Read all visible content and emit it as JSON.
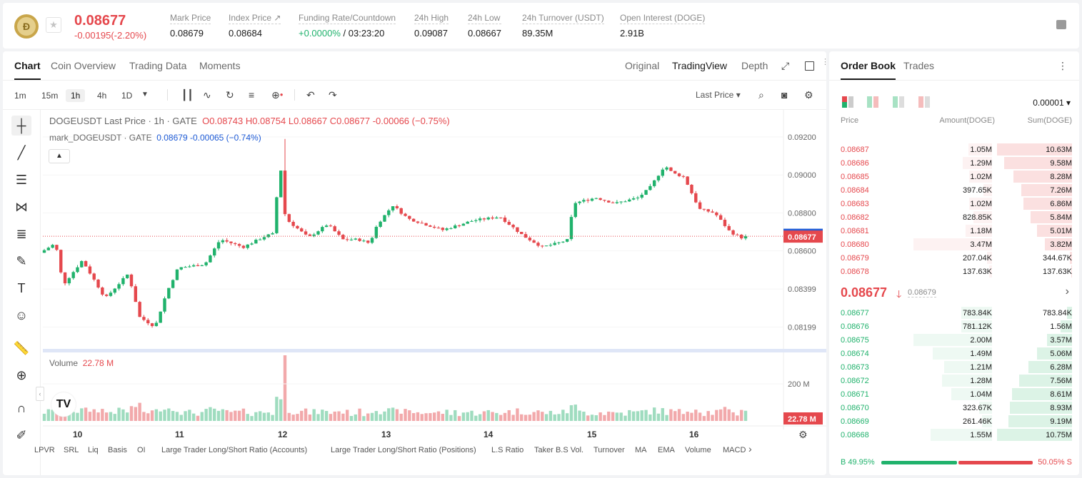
{
  "header": {
    "price": "0.08677",
    "change": "-0.00195(-2.20%)",
    "stats": [
      {
        "label": "Mark Price",
        "value": "0.08679"
      },
      {
        "label": "Index Price ↗",
        "value": "0.08684"
      },
      {
        "label": "Funding Rate/Countdown",
        "value_green": "+0.0000%",
        "value": " / 03:23:20"
      },
      {
        "label": "24h High",
        "value": "0.09087"
      },
      {
        "label": "24h Low",
        "value": "0.08667"
      },
      {
        "label": "24h Turnover (USDT)",
        "value": "89.35M"
      },
      {
        "label": "Open Interest (DOGE)",
        "value": "2.91B"
      }
    ]
  },
  "chart_tabs": [
    "Chart",
    "Coin Overview",
    "Trading Data",
    "Moments"
  ],
  "view_tabs": [
    "Original",
    "TradingView",
    "Depth"
  ],
  "timeframes": [
    "1m",
    "15m",
    "1h",
    "4h",
    "1D"
  ],
  "price_source": "Last Price",
  "legend": {
    "symbol": "DOGEUSDT Last Price · 1h · GATE",
    "o": "O0.08743",
    "h": "H0.08754",
    "l": "L0.08667",
    "c": "C0.08677",
    "chg": "-0.00066 (−0.75%)",
    "mark_label": "mark_DOGEUSDT · GATE",
    "mark_vals": "0.08679  -0.00065 (−0.74%)"
  },
  "volume_legend": {
    "label": "Volume",
    "value": "22.78 M"
  },
  "price_axis": [
    "0.09200",
    "0.09000",
    "0.08800",
    "0.08600",
    "0.08399",
    "0.08199"
  ],
  "price_tags": {
    "mark": "0.08679",
    "last": "0.08677"
  },
  "volume_axis": {
    "label": "200 M",
    "tag": "22.78 M"
  },
  "time_axis": [
    "10",
    "11",
    "12",
    "13",
    "14",
    "15",
    "16"
  ],
  "indicators": [
    "LPVR",
    "SRL",
    "Liq",
    "Basis",
    "OI",
    "Large Trader Long/Short Ratio (Accounts)",
    "Large Trader Long/Short Ratio (Positions)",
    "L.S Ratio",
    "Taker B.S Vol.",
    "Turnover",
    "MA",
    "EMA",
    "Volume",
    "MACD"
  ],
  "colors": {
    "up": "#20b26c",
    "down": "#e5484d",
    "mark": "#1e5bd6"
  },
  "order_book": {
    "tabs": [
      "Order Book",
      "Trades"
    ],
    "precision": "0.00001",
    "columns": [
      "Price",
      "Amount(DOGE)",
      "Sum(DOGE)"
    ],
    "asks": [
      {
        "price": "0.08687",
        "amount": "1.05M",
        "sum": "10.63M",
        "amt_pct": 0.3,
        "sum_pct": 1.0
      },
      {
        "price": "0.08686",
        "amount": "1.29M",
        "sum": "9.58M",
        "amt_pct": 0.37,
        "sum_pct": 0.9
      },
      {
        "price": "0.08685",
        "amount": "1.02M",
        "sum": "8.28M",
        "amt_pct": 0.29,
        "sum_pct": 0.78
      },
      {
        "price": "0.08684",
        "amount": "397.65K",
        "sum": "7.26M",
        "amt_pct": 0.11,
        "sum_pct": 0.68
      },
      {
        "price": "0.08683",
        "amount": "1.02M",
        "sum": "6.86M",
        "amt_pct": 0.29,
        "sum_pct": 0.65
      },
      {
        "price": "0.08682",
        "amount": "828.85K",
        "sum": "5.84M",
        "amt_pct": 0.24,
        "sum_pct": 0.55
      },
      {
        "price": "0.08681",
        "amount": "1.18M",
        "sum": "5.01M",
        "amt_pct": 0.34,
        "sum_pct": 0.47
      },
      {
        "price": "0.08680",
        "amount": "3.47M",
        "sum": "3.82M",
        "amt_pct": 1.0,
        "sum_pct": 0.36
      },
      {
        "price": "0.08679",
        "amount": "207.04K",
        "sum": "344.67K",
        "amt_pct": 0.06,
        "sum_pct": 0.03
      },
      {
        "price": "0.08678",
        "amount": "137.63K",
        "sum": "137.63K",
        "amt_pct": 0.04,
        "sum_pct": 0.01
      }
    ],
    "mid": {
      "price": "0.08677",
      "arrow": "🡓",
      "mark": "0.08679"
    },
    "bids": [
      {
        "price": "0.08677",
        "amount": "783.84K",
        "sum": "783.84K",
        "amt_pct": 0.39,
        "sum_pct": 0.07
      },
      {
        "price": "0.08676",
        "amount": "781.12K",
        "sum": "1.56M",
        "amt_pct": 0.39,
        "sum_pct": 0.15
      },
      {
        "price": "0.08675",
        "amount": "2.00M",
        "sum": "3.57M",
        "amt_pct": 1.0,
        "sum_pct": 0.33
      },
      {
        "price": "0.08674",
        "amount": "1.49M",
        "sum": "5.06M",
        "amt_pct": 0.75,
        "sum_pct": 0.47
      },
      {
        "price": "0.08673",
        "amount": "1.21M",
        "sum": "6.28M",
        "amt_pct": 0.61,
        "sum_pct": 0.58
      },
      {
        "price": "0.08672",
        "amount": "1.28M",
        "sum": "7.56M",
        "amt_pct": 0.64,
        "sum_pct": 0.7
      },
      {
        "price": "0.08671",
        "amount": "1.04M",
        "sum": "8.61M",
        "amt_pct": 0.52,
        "sum_pct": 0.8
      },
      {
        "price": "0.08670",
        "amount": "323.67K",
        "sum": "8.93M",
        "amt_pct": 0.16,
        "sum_pct": 0.83
      },
      {
        "price": "0.08669",
        "amount": "261.46K",
        "sum": "9.19M",
        "amt_pct": 0.13,
        "sum_pct": 0.85
      },
      {
        "price": "0.08668",
        "amount": "1.55M",
        "sum": "10.75M",
        "amt_pct": 0.78,
        "sum_pct": 1.0
      }
    ],
    "ratio": {
      "buy": "B 49.95%",
      "sell": "50.05% S"
    }
  },
  "chart_data": {
    "type": "candlestick",
    "series_name": "DOGEUSDT",
    "ylim": [
      0.0811,
      0.0923
    ],
    "y_ticks": [
      0.092,
      0.09,
      0.088,
      0.086,
      0.08399,
      0.08199
    ],
    "last_close": 0.08677,
    "mark_price": 0.08679
  }
}
